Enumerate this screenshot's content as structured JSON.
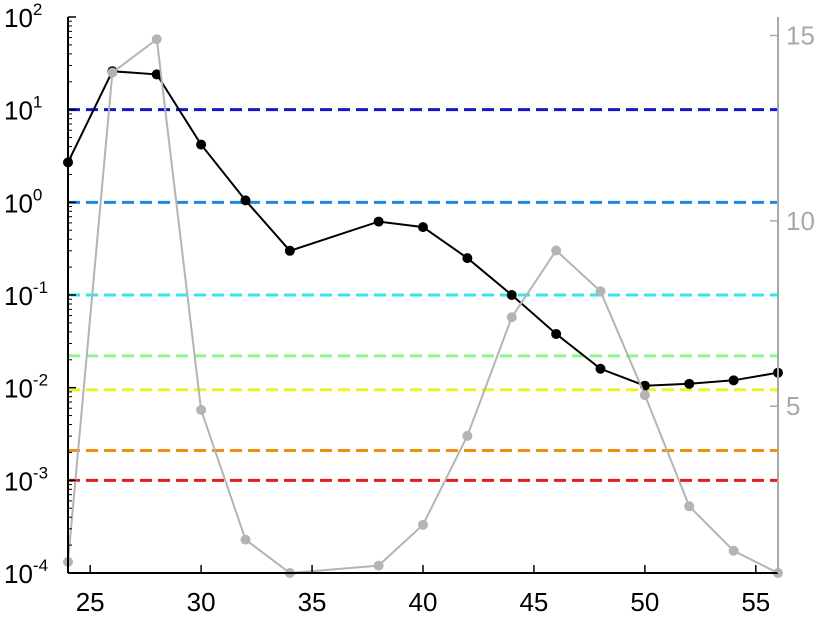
{
  "chart_data": {
    "type": "line",
    "title": "",
    "xlabel": "",
    "ylabel": "",
    "y2label": "",
    "xlim": [
      24,
      56
    ],
    "ylim": [
      0.0001,
      100
    ],
    "y2lim": [
      0.5,
      15.5
    ],
    "yscale": "log",
    "x_ticks": [
      25,
      30,
      35,
      40,
      45,
      50,
      55
    ],
    "y_ticks": [
      {
        "value": 0.0001,
        "base": "10",
        "exp": "-4"
      },
      {
        "value": 0.001,
        "base": "10",
        "exp": "-3"
      },
      {
        "value": 0.01,
        "base": "10",
        "exp": "-2"
      },
      {
        "value": 0.1,
        "base": "10",
        "exp": "-1"
      },
      {
        "value": 1,
        "base": "10",
        "exp": "0"
      },
      {
        "value": 10,
        "base": "10",
        "exp": "1"
      },
      {
        "value": 100,
        "base": "10",
        "exp": "2"
      }
    ],
    "y2_ticks": [
      5,
      10,
      15
    ],
    "grid": false,
    "reference_lines": [
      {
        "y": 10,
        "color": "#1414d2"
      },
      {
        "y": 1,
        "color": "#1e87e6"
      },
      {
        "y": 0.1,
        "color": "#32e6f0"
      },
      {
        "y": 0.022,
        "color": "#8cf58c"
      },
      {
        "y": 0.0095,
        "color": "#f0f028"
      },
      {
        "y": 0.0021,
        "color": "#f58c14"
      },
      {
        "y": 0.001,
        "color": "#e61e1e"
      }
    ],
    "series": [
      {
        "axis": "left",
        "color": "#000000",
        "x": [
          24,
          26,
          28,
          30,
          32,
          34,
          38,
          40,
          42,
          44,
          46,
          48,
          50,
          52,
          54,
          56
        ],
        "y": [
          2.7,
          26,
          24,
          4.2,
          1.05,
          0.3,
          0.62,
          0.54,
          0.25,
          0.1,
          0.038,
          0.016,
          0.0105,
          0.011,
          0.012,
          0.0145
        ]
      },
      {
        "axis": "right",
        "color": "#b4b4b4",
        "x": [
          24,
          26,
          28,
          30,
          32,
          34,
          38,
          40,
          42,
          44,
          46,
          48,
          50,
          52,
          54,
          56
        ],
        "y": [
          0.8,
          14.0,
          14.9,
          4.9,
          1.4,
          0.5,
          0.7,
          1.8,
          4.2,
          7.4,
          9.2,
          8.1,
          5.3,
          2.3,
          1.1,
          0.5
        ]
      }
    ]
  }
}
